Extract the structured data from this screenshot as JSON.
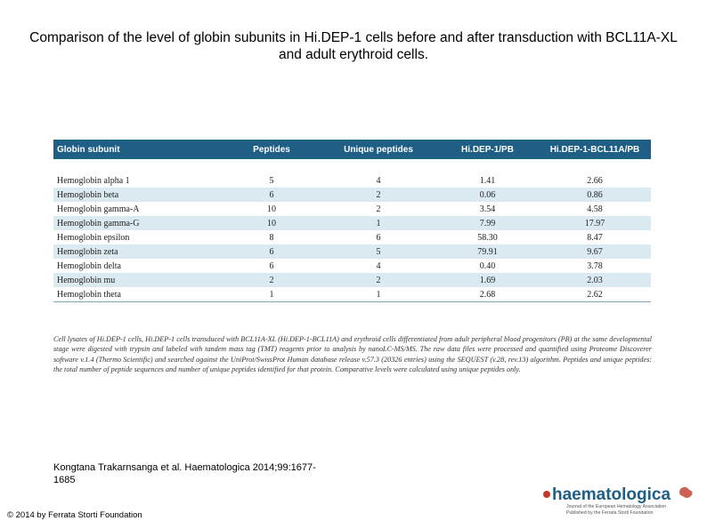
{
  "slide": {
    "title": "Comparison of the level of globin subunits in Hi.DEP-1 cells before and after transduction with BCL11A-XL and adult erythroid cells."
  },
  "table": {
    "headers": [
      "Globin subunit",
      "Peptides",
      "Unique peptides",
      "Hi.DEP-1/PB",
      "Hi.DEP-1-BCL11A/PB"
    ],
    "rows": [
      {
        "subunit": "Hemoglobin alpha 1",
        "peptides": "5",
        "unique": "4",
        "hidep": "1.41",
        "bcl": "2.66"
      },
      {
        "subunit": "Hemoglobin beta",
        "peptides": "6",
        "unique": "2",
        "hidep": "0.06",
        "bcl": "0.86"
      },
      {
        "subunit": "Hemoglobin gamma-A",
        "peptides": "10",
        "unique": "2",
        "hidep": "3.54",
        "bcl": "4.58"
      },
      {
        "subunit": "Hemoglobin gamma-G",
        "peptides": "10",
        "unique": "1",
        "hidep": "7.99",
        "bcl": "17.97"
      },
      {
        "subunit": "Hemoglobin epsilon",
        "peptides": "8",
        "unique": "6",
        "hidep": "58.30",
        "bcl": "8.47"
      },
      {
        "subunit": "Hemoglobin zeta",
        "peptides": "6",
        "unique": "5",
        "hidep": "79.91",
        "bcl": "9.67"
      },
      {
        "subunit": "Hemoglobin delta",
        "peptides": "6",
        "unique": "4",
        "hidep": "0.40",
        "bcl": "3.78"
      },
      {
        "subunit": "Hemoglobin mu",
        "peptides": "2",
        "unique": "2",
        "hidep": "1.69",
        "bcl": "2.03"
      },
      {
        "subunit": "Hemoglobin theta",
        "peptides": "1",
        "unique": "1",
        "hidep": "2.68",
        "bcl": "2.62"
      }
    ],
    "caption": "Cell lysates of Hi.DEP-1 cells, Hi.DEP-1 cells transduced with BCL11A-XL (Hi.DEP-1-BCL11A) and erythroid cells differentiated from adult peripheral blood progenitors (PB) at the same developmental stage were digested with trypsin and labeled with tandem mass tag (TMT) reagents prior to analysis by nanoLC-MS/MS. The raw data files were processed and quantified using Proteome Discoverer software v.1.4 (Thermo Scientific) and searched against the UniProt/SwissProt Human database release v.57.3 (20326 entries) using the SEQUEST (v.28, rev.13) algorithm. Peptides and unique peptides: the total number of peptide sequences and number of unique peptides identified for that protein. Comparative levels were calculated using unique peptides only."
  },
  "citation": {
    "line1": "Kongtana Trakarnsanga et al. Haematologica 2014;99:1677-",
    "line2": "1685"
  },
  "copyright": "© 2014 by Ferrata Storti Foundation",
  "logo": {
    "wordmark": "haematologica",
    "tagline1": "Journal of the European Hematology Association",
    "tagline2": "Published by the Ferrata Storti Foundation",
    "colors": {
      "wordmark": "#1f5f86",
      "accent": "#c0392b"
    }
  },
  "colors": {
    "header_bg": "#1f5f86",
    "band_bg": "#dbeaf1"
  }
}
